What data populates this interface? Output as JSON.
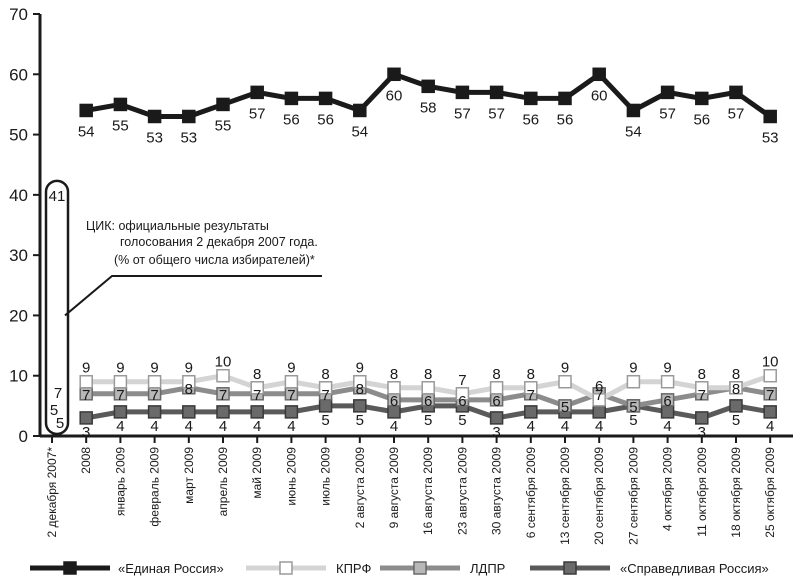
{
  "chart_data": {
    "type": "line",
    "y_ticks": [
      0,
      10,
      20,
      30,
      40,
      50,
      60,
      70
    ],
    "ylim": [
      0,
      70
    ],
    "grid": false,
    "legend_position": "bottom",
    "categories": [
      "2 декабря 2007*",
      "2008",
      "январь 2009",
      "февраль 2009",
      "март 2009",
      "апрель 2009",
      "май 2009",
      "июнь 2009",
      "июль 2009",
      "2 августа 2009",
      "9 августа 2009",
      "16 августа 2009",
      "23 августа 2009",
      "30 августа 2009",
      "6 сентября 2009",
      "13 сентября 2009",
      "20 сентября 2009",
      "27 сентября 2009",
      "4 октября 2009",
      "11 октября 2009",
      "18 октября 2009",
      "25 октября 2009"
    ],
    "series": [
      {
        "name": "«Единая Россия»",
        "color": "#1a1a1a",
        "values": [
          null,
          54,
          55,
          53,
          53,
          55,
          57,
          56,
          56,
          54,
          60,
          58,
          57,
          57,
          56,
          56,
          60,
          54,
          57,
          56,
          57,
          53
        ]
      },
      {
        "name": "КПРФ",
        "color": "#d4d4d4",
        "values": [
          null,
          9,
          9,
          9,
          9,
          10,
          8,
          9,
          8,
          9,
          8,
          8,
          7,
          8,
          8,
          9,
          6,
          9,
          9,
          8,
          8,
          10
        ]
      },
      {
        "name": "ЛДПР",
        "color": "#8c8c8c",
        "values": [
          null,
          7,
          7,
          7,
          8,
          7,
          7,
          7,
          7,
          8,
          6,
          6,
          6,
          6,
          7,
          5,
          7,
          5,
          6,
          7,
          8,
          7
        ]
      },
      {
        "name": "«Справедливая Россия»",
        "color": "#5a5a5a",
        "values": [
          null,
          3,
          4,
          4,
          4,
          4,
          4,
          4,
          5,
          5,
          4,
          5,
          5,
          3,
          4,
          4,
          4,
          5,
          4,
          3,
          5,
          4
        ]
      }
    ],
    "baseline_values": {
      "Единая Россия": 41,
      "КПРФ": 7,
      "ЛДПР": 5,
      "Справедливая Россия": 5
    },
    "annotation": [
      "ЦИК: официальные результаты",
      "голосования 2 декабря 2007 года.",
      "(% от общего числа избирателей)*"
    ]
  }
}
